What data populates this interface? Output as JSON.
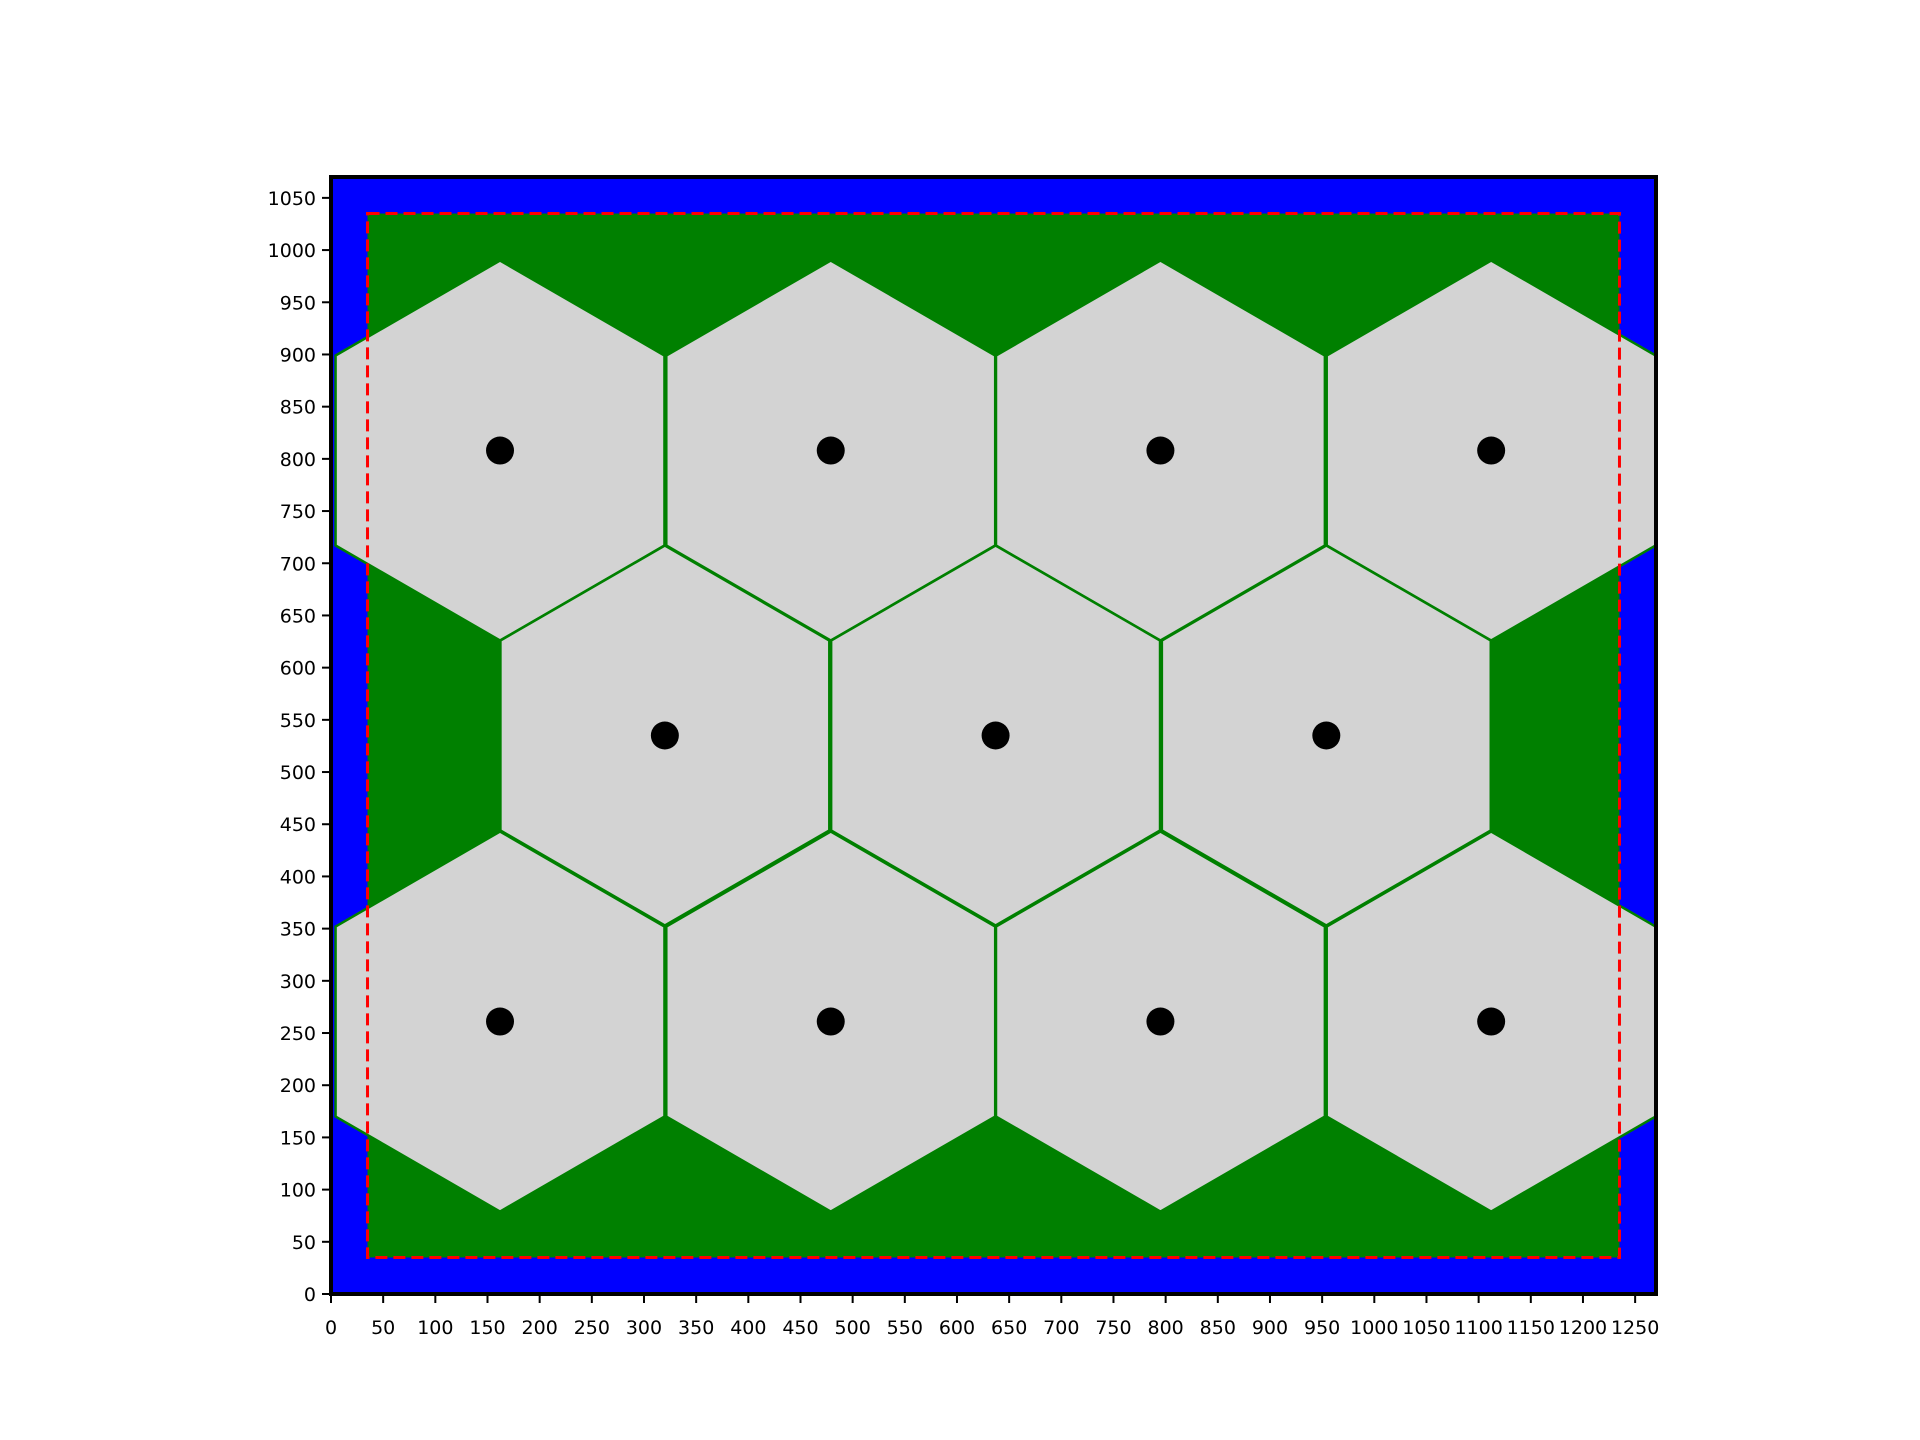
{
  "chart_data": {
    "type": "scatter",
    "title": "",
    "xlabel": "",
    "ylabel": "",
    "xlim": [
      0,
      1270
    ],
    "ylim": [
      0,
      1070
    ],
    "grid": false,
    "legend": "none",
    "x_ticks": [
      0,
      50,
      100,
      150,
      200,
      250,
      300,
      350,
      400,
      450,
      500,
      550,
      600,
      650,
      700,
      750,
      800,
      850,
      900,
      950,
      1000,
      1050,
      1100,
      1150,
      1200,
      1250
    ],
    "y_ticks": [
      0,
      50,
      100,
      150,
      200,
      250,
      300,
      350,
      400,
      450,
      500,
      550,
      600,
      650,
      700,
      750,
      800,
      850,
      900,
      950,
      1000,
      1050
    ],
    "regions": {
      "outer_boundary": {
        "x": [
          0,
          1270
        ],
        "y": [
          0,
          1070
        ],
        "color": "#0000ff"
      },
      "inner_area": {
        "x": [
          35,
          1235
        ],
        "y": [
          35,
          1035
        ],
        "fill_color": "#008000",
        "border_color": "#ff0000",
        "border_style": "dashed"
      }
    },
    "hex_cells": {
      "circumradius": 182,
      "fill_color": "#d3d3d3",
      "edge_color": "#008000"
    },
    "sites": [
      {
        "x": 162,
        "y": 808
      },
      {
        "x": 479,
        "y": 808
      },
      {
        "x": 795,
        "y": 808
      },
      {
        "x": 1112,
        "y": 808
      },
      {
        "x": 320,
        "y": 535
      },
      {
        "x": 637,
        "y": 535
      },
      {
        "x": 954,
        "y": 535
      },
      {
        "x": 162,
        "y": 261
      },
      {
        "x": 479,
        "y": 261
      },
      {
        "x": 795,
        "y": 261
      },
      {
        "x": 1112,
        "y": 261
      }
    ],
    "site_color": "#000000"
  }
}
